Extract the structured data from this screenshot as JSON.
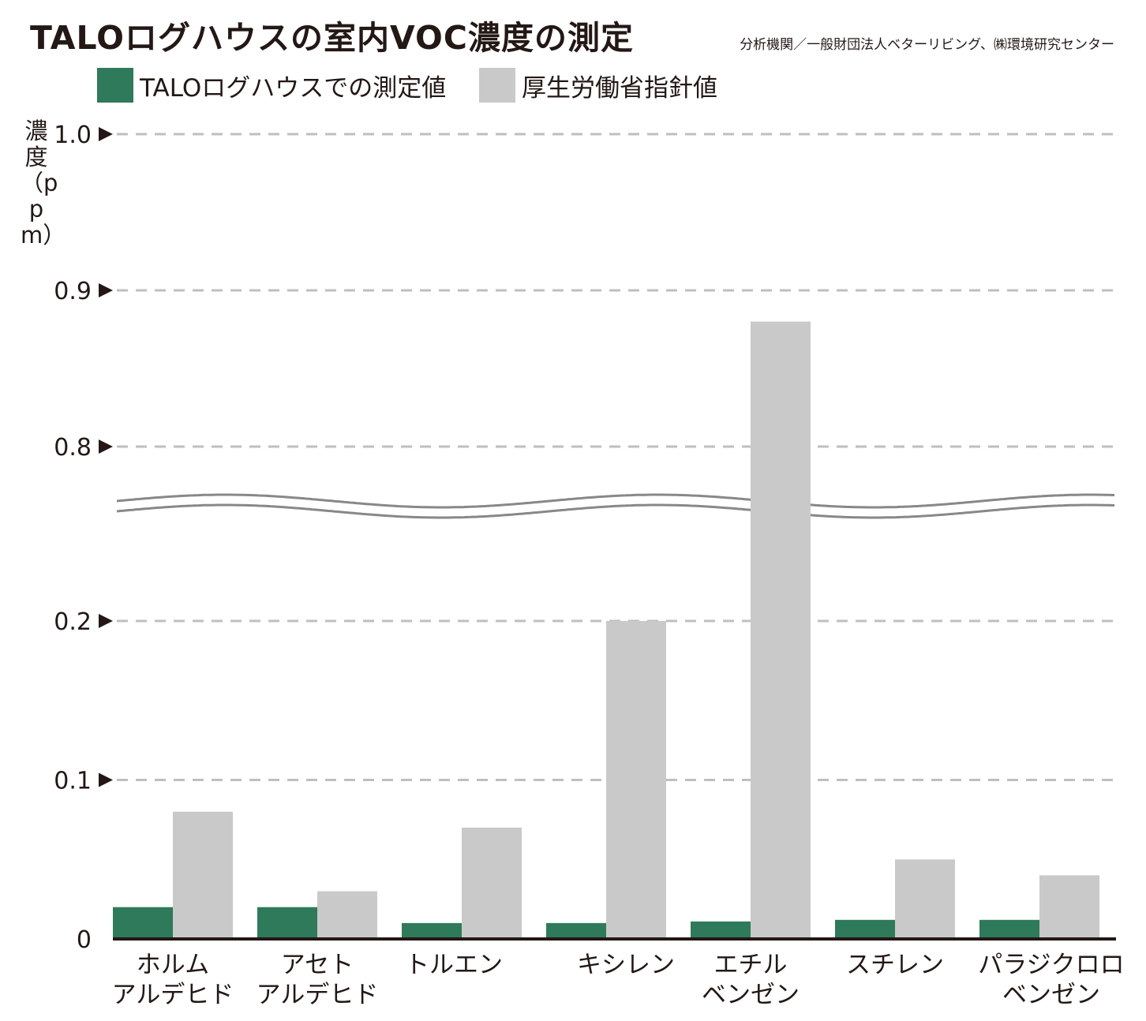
{
  "title": "TALOログハウスの室内VOC濃度の測定",
  "source": "分析機関／一般財団法人ベターリビング、㈱環境研究センター",
  "colors": {
    "measured": "#2e7a5a",
    "guideline": "#c9c9c9",
    "text": "#231815",
    "grid": "#bfbfbf",
    "break": "#888888"
  },
  "chart_data": {
    "type": "bar",
    "title": "TALOログハウスの室内VOC濃度の測定",
    "ylabel": "濃度（ppm）",
    "xlabel": "",
    "ylim": [
      0,
      1.0
    ],
    "y_axis_break": [
      0.2,
      0.8
    ],
    "yticks": [
      {
        "value": 0,
        "label": "0",
        "arrow": false
      },
      {
        "value": 0.1,
        "label": "0.1",
        "arrow": true
      },
      {
        "value": 0.2,
        "label": "0.2",
        "arrow": true
      },
      {
        "value": 0.8,
        "label": "0.8",
        "arrow": true
      },
      {
        "value": 0.9,
        "label": "0.9",
        "arrow": true
      },
      {
        "value": 1.0,
        "label": "1.0",
        "arrow": true
      }
    ],
    "categories": [
      [
        "ホルム",
        "アルデヒド"
      ],
      [
        "アセト",
        "アルデヒド"
      ],
      [
        "トルエン"
      ],
      [
        "キシレン"
      ],
      [
        "エチル",
        "ベンゼン"
      ],
      [
        "スチレン"
      ],
      [
        "パラジクロロ",
        "ベンゼン"
      ]
    ],
    "series": [
      {
        "name": "TALOログハウスでの測定値",
        "values": [
          0.02,
          0.02,
          0.01,
          0.01,
          0.011,
          0.012,
          0.012
        ]
      },
      {
        "name": "厚生労働省指針値",
        "values": [
          0.08,
          0.03,
          0.07,
          0.2,
          0.88,
          0.05,
          0.04
        ]
      }
    ],
    "legend": "top-left",
    "grid": true
  }
}
